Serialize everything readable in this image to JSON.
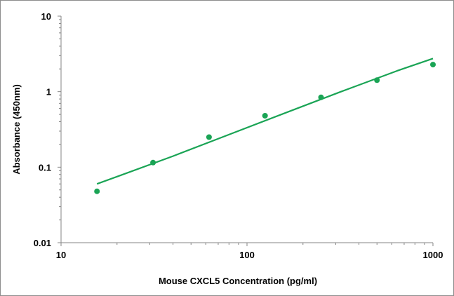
{
  "chart_data": {
    "type": "scatter",
    "title": "",
    "xlabel": "Mouse CXCL5 Concentration (pg/ml)",
    "ylabel": "Absorbance (450nm)",
    "x_scale": "log",
    "y_scale": "log",
    "xlim": [
      10,
      1000
    ],
    "ylim": [
      0.01,
      10
    ],
    "x_ticks": [
      {
        "value": 10,
        "label": "10"
      },
      {
        "value": 100,
        "label": "100"
      },
      {
        "value": 1000,
        "label": "1000"
      }
    ],
    "y_ticks": [
      {
        "value": 0.01,
        "label": "0.01"
      },
      {
        "value": 0.1,
        "label": "0.1"
      },
      {
        "value": 1,
        "label": "1"
      },
      {
        "value": 10,
        "label": "10"
      }
    ],
    "grid": false,
    "legend": "none",
    "series": [
      {
        "kind": "points",
        "color": "#1aa455",
        "x": [
          15.6,
          31.25,
          62.5,
          125,
          250,
          500,
          1000
        ],
        "y": [
          0.048,
          0.115,
          0.25,
          0.48,
          0.84,
          1.42,
          2.28
        ]
      },
      {
        "kind": "fit-line",
        "color": "#1aa455",
        "x": [
          15.6,
          20,
          40,
          80,
          160,
          320,
          640,
          1000
        ],
        "y": [
          0.06,
          0.075,
          0.14,
          0.27,
          0.52,
          1.0,
          1.88,
          2.75
        ]
      }
    ]
  }
}
